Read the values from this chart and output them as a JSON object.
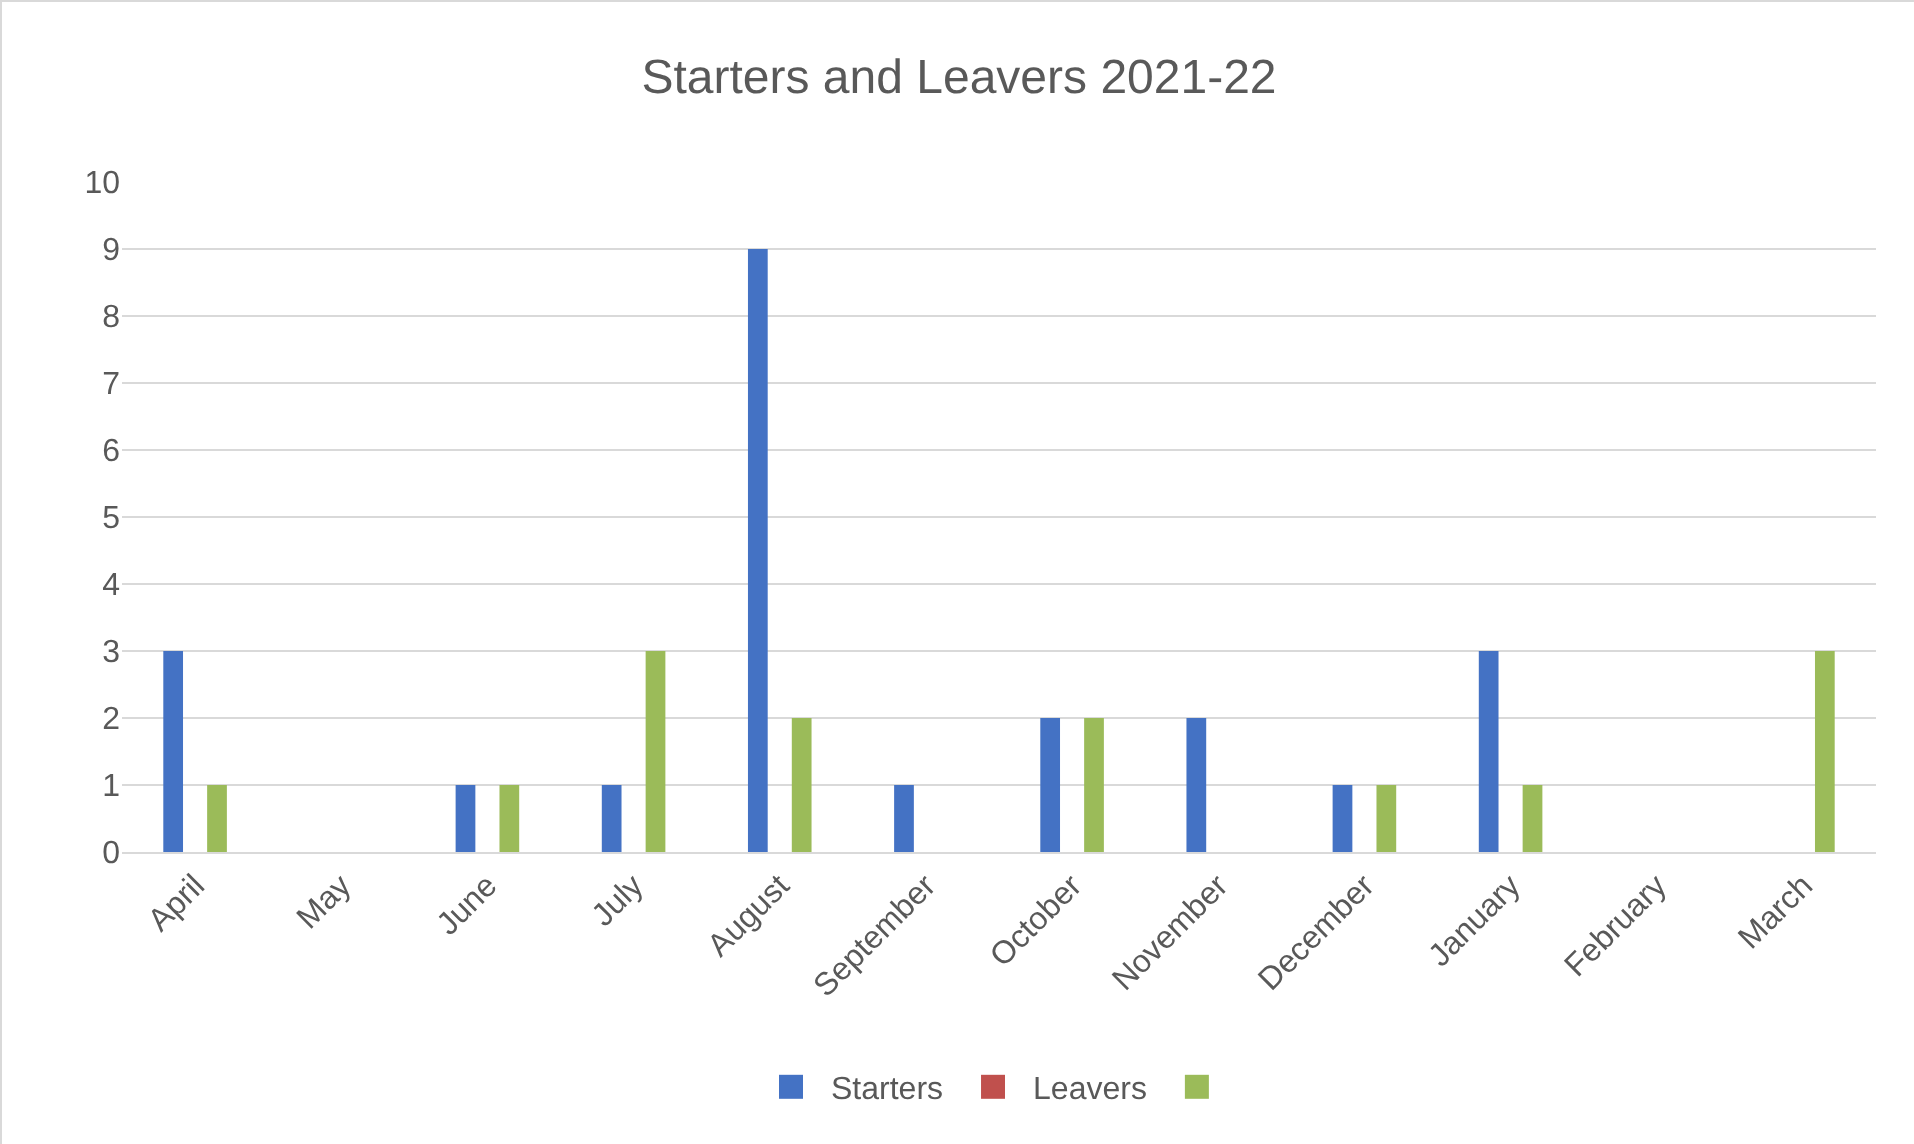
{
  "chart_data": {
    "type": "bar",
    "title": "Starters and Leavers 2021-22",
    "categories": [
      "April",
      "May",
      "June",
      "July",
      "August",
      "September",
      "October",
      "November",
      "December",
      "January",
      "February",
      "March"
    ],
    "series": [
      {
        "name": "Starters",
        "color": "#4472c4",
        "values": [
          3,
          0,
          1,
          1,
          9,
          1,
          2,
          2,
          1,
          3,
          0,
          0
        ]
      },
      {
        "name": "Leavers",
        "color": "#c0504d",
        "values": [
          0,
          0,
          0,
          0,
          0,
          0,
          0,
          0,
          0,
          0,
          0,
          0
        ]
      },
      {
        "color": "#9bbb59",
        "values": [
          1,
          0,
          1,
          3,
          2,
          0,
          2,
          0,
          1,
          1,
          0,
          3
        ]
      }
    ],
    "ylim": [
      0,
      10
    ],
    "yticks": [
      0,
      1,
      2,
      3,
      4,
      5,
      6,
      7,
      8,
      9,
      10
    ],
    "grid": "y",
    "legend": "bottom"
  }
}
